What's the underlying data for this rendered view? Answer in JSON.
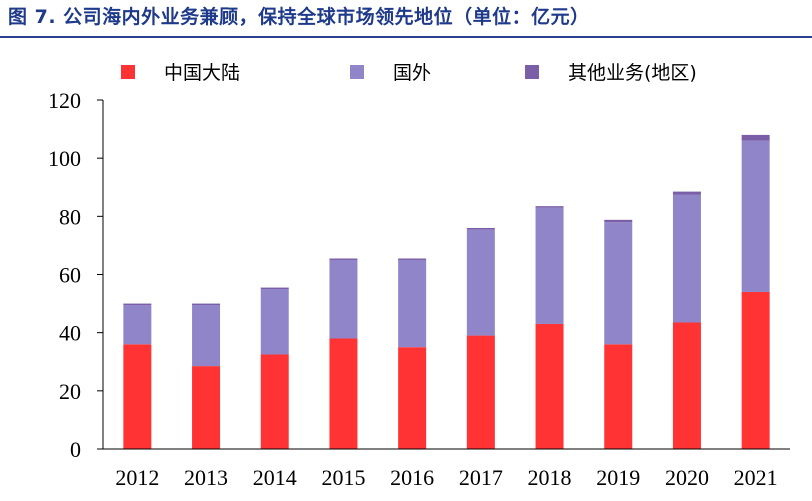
{
  "chart_data": {
    "type": "bar",
    "stacked": true,
    "title": "图 7. 公司海内外业务兼顾，保持全球市场领先地位（单位：亿元）",
    "categories": [
      "2012",
      "2013",
      "2014",
      "2015",
      "2016",
      "2017",
      "2018",
      "2019",
      "2020",
      "2021"
    ],
    "series": [
      {
        "name": "中国大陆",
        "color": "#ff3333",
        "values": [
          36,
          28.5,
          32.5,
          38,
          35,
          39,
          43,
          36,
          43.5,
          54
        ]
      },
      {
        "name": "国外",
        "color": "#9085c8",
        "values": [
          13.5,
          21,
          22.5,
          27,
          30,
          36.5,
          40,
          42,
          44,
          52
        ]
      },
      {
        "name": "其他业务(地区)",
        "color": "#7a5ea6",
        "values": [
          0.5,
          0.5,
          0.5,
          0.5,
          0.5,
          0.5,
          0.5,
          0.8,
          1,
          2
        ]
      }
    ],
    "ylim": [
      0,
      120
    ],
    "yticks": [
      0,
      20,
      40,
      60,
      80,
      100,
      120
    ],
    "legend_position": "top",
    "grid": false
  }
}
